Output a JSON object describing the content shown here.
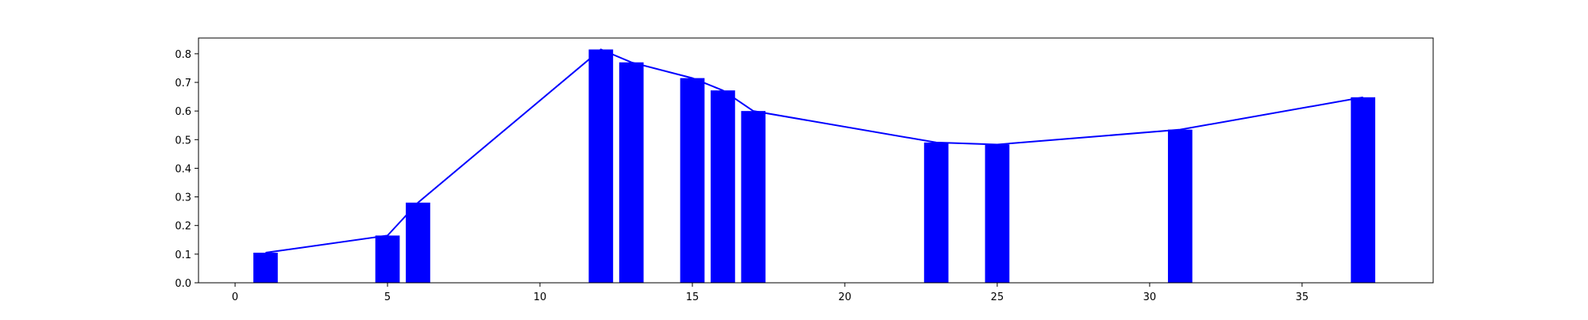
{
  "chart_data": {
    "type": "bar",
    "title": "",
    "xlabel": "",
    "ylabel": "",
    "xlim": [
      -1.2,
      39.3
    ],
    "ylim": [
      0,
      0.855
    ],
    "xticks": [
      0,
      5,
      10,
      15,
      20,
      25,
      30,
      35
    ],
    "yticks": [
      0.0,
      0.1,
      0.2,
      0.3,
      0.4,
      0.5,
      0.6,
      0.7,
      0.8
    ],
    "ytick_labels": [
      "0.0",
      "0.1",
      "0.2",
      "0.3",
      "0.4",
      "0.5",
      "0.6",
      "0.7",
      "0.8"
    ],
    "xtick_labels": [
      "0",
      "5",
      "10",
      "15",
      "20",
      "25",
      "30",
      "35"
    ],
    "bar_width": 0.8,
    "grid": false,
    "bar_color": "#0000ff",
    "line_color": "#0000ff",
    "series": [
      {
        "type": "bar",
        "x": [
          1,
          5,
          6,
          12,
          13,
          15,
          16,
          17,
          23,
          25,
          31,
          37
        ],
        "values": [
          0.105,
          0.165,
          0.28,
          0.815,
          0.77,
          0.715,
          0.672,
          0.6,
          0.49,
          0.483,
          0.535,
          0.648
        ]
      },
      {
        "type": "line",
        "x": [
          1,
          5,
          6,
          12,
          13,
          15,
          16,
          17,
          23,
          25,
          31,
          37
        ],
        "values": [
          0.105,
          0.165,
          0.28,
          0.815,
          0.77,
          0.715,
          0.672,
          0.6,
          0.49,
          0.483,
          0.535,
          0.648
        ]
      }
    ]
  }
}
